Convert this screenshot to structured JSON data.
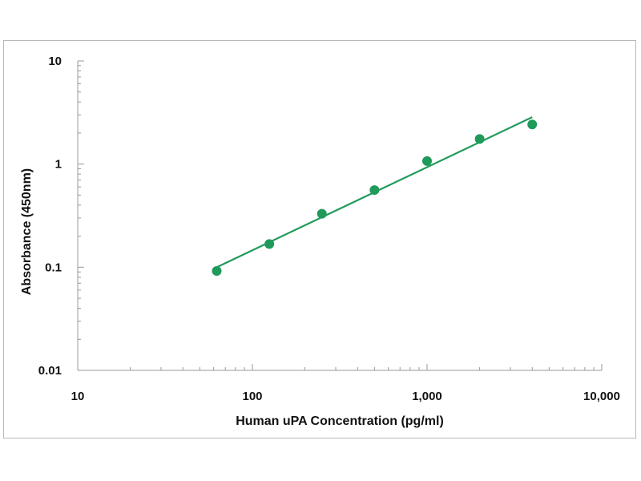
{
  "chart_data": {
    "type": "scatter",
    "title": "",
    "xlabel": "Human uPA Concentration (pg/ml)",
    "ylabel": "Absorbance (450nm)",
    "x_scale": "log",
    "y_scale": "log",
    "xlim": [
      10,
      10000
    ],
    "ylim": [
      0.01,
      10
    ],
    "x_ticks": [
      {
        "value": 10,
        "label": "10"
      },
      {
        "value": 100,
        "label": "100"
      },
      {
        "value": 1000,
        "label": "1,000"
      },
      {
        "value": 10000,
        "label": "10,000"
      }
    ],
    "y_ticks": [
      {
        "value": 0.01,
        "label": "0.01"
      },
      {
        "value": 0.1,
        "label": "0.1"
      },
      {
        "value": 1,
        "label": "1"
      },
      {
        "value": 10,
        "label": "10"
      }
    ],
    "grid": false,
    "legend": "none",
    "series": [
      {
        "x": [
          62.5,
          125,
          250,
          500,
          1000,
          2000,
          4000
        ],
        "y": [
          0.092,
          0.168,
          0.33,
          0.56,
          1.07,
          1.75,
          2.42
        ],
        "color": "#1f9a5a",
        "marker": "circle"
      }
    ],
    "fit_line": {
      "type": "linear fit on log-log axes",
      "x": [
        62.5,
        4000
      ],
      "y": [
        0.1,
        2.85
      ],
      "color": "#1f9a5a"
    }
  }
}
